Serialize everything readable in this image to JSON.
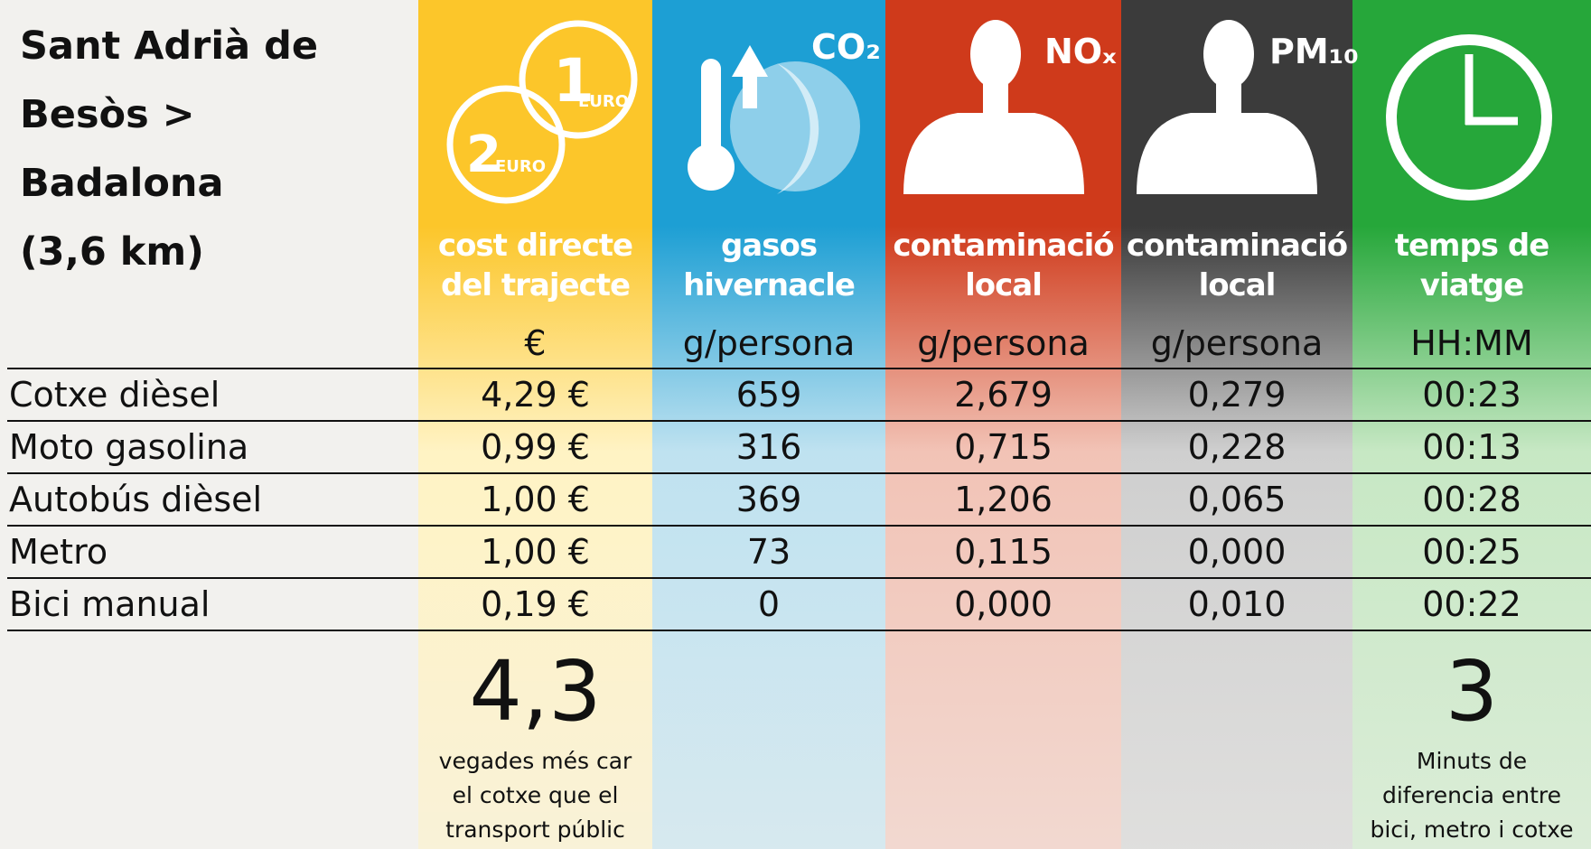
{
  "title_lines": [
    "Sant Adrià de",
    "Besòs >",
    "Badalona",
    "(3,6 km)"
  ],
  "icons": {
    "coin_1": "1",
    "coin_1_unit": "EURO",
    "coin_2": "2",
    "coin_2_unit": "EURO",
    "co2": "CO₂",
    "nox": "NOₓ",
    "pm10": "PM₁₀"
  },
  "columns": [
    {
      "header": [
        "cost directe",
        "del trajecte"
      ],
      "unit": "€"
    },
    {
      "header": [
        "gasos",
        "hivernacle"
      ],
      "unit": "g/persona"
    },
    {
      "header": [
        "contaminació",
        "local"
      ],
      "unit": "g/persona"
    },
    {
      "header": [
        "contaminació",
        "local"
      ],
      "unit": "g/persona"
    },
    {
      "header": [
        "temps de",
        "viatge"
      ],
      "unit": "HH:MM"
    }
  ],
  "rows": [
    {
      "name": "Cotxe dièsel",
      "cells": [
        "4,29 €",
        "659",
        "2,679",
        "0,279",
        "00:23"
      ]
    },
    {
      "name": "Moto gasolina",
      "cells": [
        "0,99 €",
        "316",
        "0,715",
        "0,228",
        "00:13"
      ]
    },
    {
      "name": "Autobús dièsel",
      "cells": [
        "1,00 €",
        "369",
        "1,206",
        "0,065",
        "00:28"
      ]
    },
    {
      "name": "Metro",
      "cells": [
        "1,00 €",
        "73",
        "0,115",
        "0,000",
        "00:25"
      ]
    },
    {
      "name": "Bici manual",
      "cells": [
        "0,19 €",
        "0",
        "0,000",
        "0,010",
        "00:22"
      ]
    }
  ],
  "summaries": [
    {
      "column": 0,
      "big": "4,3",
      "text": [
        "vegades més car",
        "el cotxe que el",
        "transport públic"
      ]
    },
    {
      "column": 4,
      "big": "3",
      "text": [
        "Minuts de",
        "diferencia entre",
        "bici, metro i cotxe"
      ]
    }
  ]
}
